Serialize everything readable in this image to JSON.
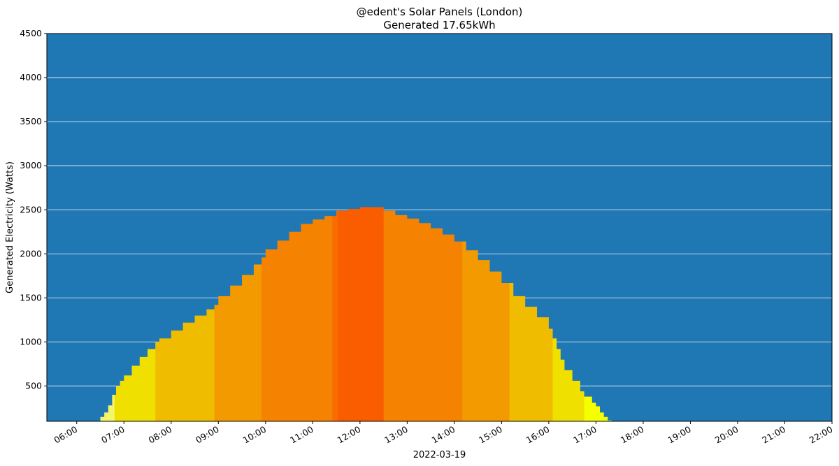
{
  "chart_data": {
    "type": "area",
    "title": "@edent's Solar Panels (London)",
    "subtitle": "Generated 17.65kWh",
    "xlabel": "2022-03-19",
    "ylabel": "Generated Electricity (Watts)",
    "xlim": [
      "05:22",
      "22:00"
    ],
    "ylim": [
      100,
      4500
    ],
    "x_ticks": [
      "06:00",
      "07:00",
      "08:00",
      "09:00",
      "10:00",
      "11:00",
      "12:00",
      "13:00",
      "14:00",
      "15:00",
      "16:00",
      "17:00",
      "18:00",
      "19:00",
      "20:00",
      "21:00",
      "22:00"
    ],
    "y_ticks": [
      500,
      1000,
      1500,
      2000,
      2500,
      3000,
      3500,
      4000,
      4500
    ],
    "grid": "horizontal",
    "background_color": "#1f77b4",
    "gridline_color": "#ffffff",
    "series": [
      {
        "x": [
          "06:30",
          "06:35",
          "06:40",
          "06:45",
          "06:50",
          "06:55",
          "07:00",
          "07:10",
          "07:20",
          "07:30",
          "07:40",
          "07:45",
          "08:00",
          "08:15",
          "08:30",
          "08:45",
          "08:55",
          "09:00",
          "09:15",
          "09:30",
          "09:45",
          "09:55",
          "10:00",
          "10:15",
          "10:30",
          "10:45",
          "11:00",
          "11:15",
          "11:30",
          "11:45",
          "12:00",
          "12:15",
          "12:30",
          "12:45",
          "13:00",
          "13:15",
          "13:30",
          "13:45",
          "14:00",
          "14:15",
          "14:30",
          "14:45",
          "15:00",
          "15:15",
          "15:30",
          "15:45",
          "16:00",
          "16:05",
          "16:10",
          "16:15",
          "16:20",
          "16:30",
          "16:40",
          "16:45",
          "16:55",
          "17:00",
          "17:05",
          "17:10",
          "17:15",
          "17:20",
          "17:25"
        ],
        "values": [
          150,
          200,
          280,
          400,
          500,
          560,
          620,
          730,
          830,
          920,
          1000,
          1040,
          1130,
          1220,
          1300,
          1370,
          1420,
          1520,
          1640,
          1760,
          1880,
          1960,
          2050,
          2150,
          2250,
          2340,
          2390,
          2430,
          2490,
          2510,
          2530,
          2530,
          2490,
          2440,
          2400,
          2350,
          2290,
          2220,
          2140,
          2040,
          1930,
          1800,
          1670,
          1520,
          1400,
          1280,
          1150,
          1040,
          920,
          800,
          680,
          560,
          440,
          380,
          310,
          270,
          200,
          150,
          110,
          90,
          70
        ]
      }
    ],
    "fill_bands": [
      {
        "from": "06:27",
        "to": "06:48",
        "color": "#f5f56a"
      },
      {
        "from": "06:48",
        "to": "07:40",
        "color": "#f0e000"
      },
      {
        "from": "07:40",
        "to": "08:55",
        "color": "#f0bc00"
      },
      {
        "from": "08:55",
        "to": "09:55",
        "color": "#f29a00"
      },
      {
        "from": "09:55",
        "to": "11:25",
        "color": "#f58200"
      },
      {
        "from": "11:25",
        "to": "11:32",
        "color": "#f86c00"
      },
      {
        "from": "11:32",
        "to": "12:30",
        "color": "#fa5c00"
      },
      {
        "from": "12:30",
        "to": "14:10",
        "color": "#f58200"
      },
      {
        "from": "14:10",
        "to": "15:10",
        "color": "#f29a00"
      },
      {
        "from": "15:10",
        "to": "16:05",
        "color": "#f0bc00"
      },
      {
        "from": "16:05",
        "to": "16:45",
        "color": "#f0e000"
      },
      {
        "from": "16:45",
        "to": "17:30",
        "color": "#f5ff00"
      }
    ]
  }
}
